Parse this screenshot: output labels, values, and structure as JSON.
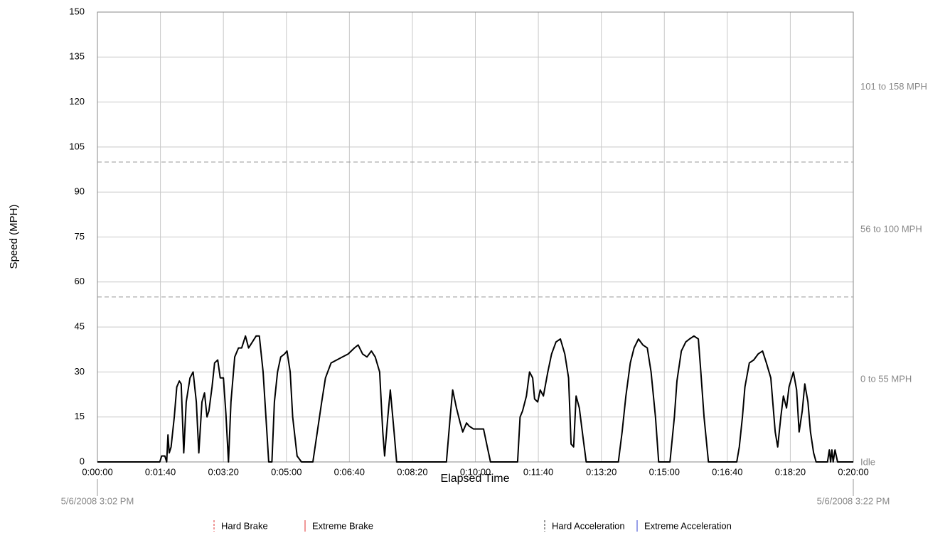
{
  "chart_data": {
    "type": "line",
    "y_label": "Speed (MPH)",
    "x_label": "Elapsed Time",
    "start_label": "5/6/2008 3:02 PM",
    "end_label": "5/6/2008 3:22 PM",
    "xlim": [
      0,
      1200
    ],
    "xticks": [
      {
        "value": 0,
        "label": "0:00:00"
      },
      {
        "value": 100,
        "label": "0:01:40"
      },
      {
        "value": 200,
        "label": "0:03:20"
      },
      {
        "value": 300,
        "label": "0:05:00"
      },
      {
        "value": 400,
        "label": "0:06:40"
      },
      {
        "value": 500,
        "label": "0:08:20"
      },
      {
        "value": 600,
        "label": "0:10:00"
      },
      {
        "value": 700,
        "label": "0:11:40"
      },
      {
        "value": 800,
        "label": "0:13:20"
      },
      {
        "value": 900,
        "label": "0:15:00"
      },
      {
        "value": 1000,
        "label": "0:16:40"
      },
      {
        "value": 1100,
        "label": "0:18:20"
      },
      {
        "value": 1200,
        "label": "0:20:00"
      }
    ],
    "ylim": [
      0,
      150
    ],
    "yticks": [
      0,
      15,
      30,
      45,
      60,
      75,
      90,
      105,
      120,
      135,
      150
    ],
    "grid": true,
    "thresholds": [
      55,
      100
    ],
    "zones": [
      "Idle",
      "0 to 55 MPH",
      "56 to 100 MPH",
      "101 to 158 MPH"
    ],
    "legend": [
      {
        "name": "Hard Brake",
        "color": "#e03030",
        "dashed": true
      },
      {
        "name": "Extreme Brake",
        "color": "#e03030",
        "dashed": false
      },
      {
        "name": "Hard Acceleration",
        "color": "#333333",
        "dashed": true
      },
      {
        "name": "Extreme Acceleration",
        "color": "#3040d0",
        "dashed": false
      }
    ],
    "x": [
      0,
      99,
      102,
      107,
      110,
      112,
      114,
      117,
      122,
      126,
      130,
      133,
      137,
      141,
      147,
      152,
      157,
      161,
      166,
      170,
      174,
      177,
      182,
      186,
      191,
      195,
      200,
      204,
      208,
      212,
      218,
      224,
      229,
      235,
      240,
      246,
      252,
      257,
      263,
      269,
      272,
      277,
      281,
      286,
      291,
      297,
      301,
      306,
      310,
      317,
      324,
      342,
      349,
      356,
      362,
      371,
      380,
      389,
      398,
      408,
      414,
      421,
      428,
      435,
      441,
      448,
      453,
      456,
      461,
      465,
      471,
      475,
      554,
      560,
      564,
      570,
      576,
      580,
      586,
      590,
      597,
      613,
      619,
      624,
      667,
      671,
      675,
      681,
      686,
      691,
      694,
      699,
      703,
      708,
      715,
      721,
      728,
      735,
      742,
      748,
      752,
      756,
      760,
      765,
      771,
      776,
      827,
      833,
      839,
      846,
      852,
      859,
      866,
      873,
      879,
      886,
      891,
      909,
      916,
      920,
      927,
      934,
      940,
      947,
      954,
      958,
      963,
      970,
      1015,
      1019,
      1024,
      1028,
      1035,
      1042,
      1049,
      1056,
      1062,
      1069,
      1076,
      1080,
      1085,
      1089,
      1094,
      1098,
      1105,
      1110,
      1114,
      1119,
      1123,
      1128,
      1132,
      1137,
      1141,
      1159,
      1162,
      1164,
      1166,
      1168,
      1171,
      1175,
      1200
    ],
    "series": [
      {
        "color": "#000000",
        "values": [
          0,
          0,
          2,
          2,
          0,
          9,
          3,
          5,
          15,
          25,
          27,
          26,
          3,
          20,
          28,
          30,
          20,
          3,
          20,
          23,
          15,
          17,
          25,
          33,
          34,
          28,
          28,
          16,
          0,
          20,
          35,
          38,
          38,
          42,
          38,
          40,
          42,
          42,
          30,
          10,
          0,
          0,
          20,
          30,
          35,
          36,
          37,
          30,
          15,
          2,
          0,
          0,
          10,
          20,
          28,
          33,
          34,
          35,
          36,
          38,
          39,
          36,
          35,
          37,
          35,
          30,
          10,
          2,
          15,
          24,
          10,
          0,
          0,
          15,
          24,
          18,
          13,
          10,
          13,
          12,
          11,
          11,
          5,
          0,
          0,
          15,
          17,
          22,
          30,
          28,
          21,
          20,
          24,
          22,
          30,
          36,
          40,
          41,
          36,
          28,
          6,
          5,
          22,
          18,
          8,
          0,
          0,
          10,
          22,
          33,
          38,
          41,
          39,
          38,
          30,
          15,
          0,
          0,
          15,
          27,
          37,
          40,
          41,
          42,
          41,
          30,
          15,
          0,
          0,
          5,
          15,
          25,
          33,
          34,
          36,
          37,
          33,
          28,
          10,
          5,
          15,
          22,
          18,
          25,
          30,
          24,
          10,
          17,
          26,
          20,
          10,
          3,
          0,
          0,
          4,
          0,
          4,
          0,
          4,
          0,
          0
        ]
      }
    ]
  }
}
